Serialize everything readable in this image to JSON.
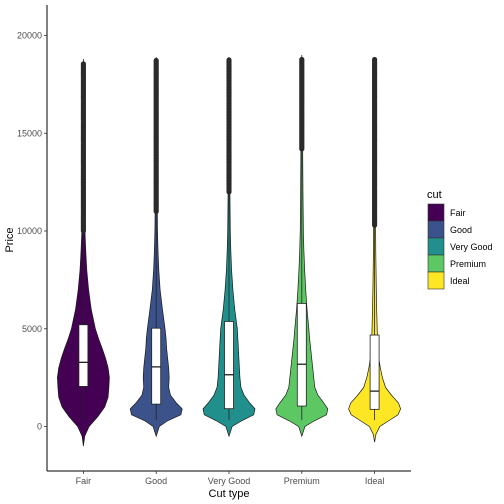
{
  "chart_data": {
    "type": "violin",
    "title": "",
    "xlabel": "Cut type",
    "ylabel": "Price",
    "ylim": [
      -2300,
      20800
    ],
    "yticks": [
      0,
      5000,
      10000,
      15000,
      20000
    ],
    "yticklabels": [
      "0",
      "5000",
      "10000",
      "15000",
      "20000"
    ],
    "categories": [
      "Fair",
      "Good",
      "Very Good",
      "Premium",
      "Ideal"
    ],
    "grid": false,
    "legend": {
      "title": "cut",
      "position": "right",
      "entries": [
        "Fair",
        "Good",
        "Very Good",
        "Premium",
        "Ideal"
      ]
    },
    "colors": [
      "#440154",
      "#3B528B",
      "#21908C",
      "#5DC863",
      "#FDE725"
    ],
    "series": [
      {
        "name": "Fair",
        "color": "#440154",
        "violin_range": [
          -1000,
          18800
        ],
        "whisker": [
          337,
          10000
        ],
        "q1": 2050,
        "median": 3282,
        "q3": 5206,
        "outlier_range": [
          10000,
          18574
        ],
        "density": [
          [
            -1000,
            0
          ],
          [
            -500,
            0.05
          ],
          [
            0,
            0.22
          ],
          [
            500,
            0.55
          ],
          [
            1000,
            0.82
          ],
          [
            1500,
            0.95
          ],
          [
            2000,
            0.98
          ],
          [
            2500,
            1.0
          ],
          [
            3000,
            0.95
          ],
          [
            3500,
            0.85
          ],
          [
            4000,
            0.72
          ],
          [
            4500,
            0.58
          ],
          [
            5000,
            0.46
          ],
          [
            6000,
            0.3
          ],
          [
            7000,
            0.2
          ],
          [
            8000,
            0.13
          ],
          [
            9000,
            0.09
          ],
          [
            10000,
            0.06
          ],
          [
            12000,
            0.04
          ],
          [
            14000,
            0.03
          ],
          [
            16000,
            0.025
          ],
          [
            17500,
            0.02
          ],
          [
            18800,
            0
          ]
        ]
      },
      {
        "name": "Good",
        "color": "#3B528B",
        "violin_range": [
          -500,
          18900
        ],
        "whisker": [
          327,
          11000
        ],
        "q1": 1145,
        "median": 3050,
        "q3": 5028,
        "outlier_range": [
          11000,
          18788
        ],
        "density": [
          [
            -500,
            0
          ],
          [
            0,
            0.12
          ],
          [
            300,
            0.45
          ],
          [
            600,
            0.95
          ],
          [
            900,
            1.0
          ],
          [
            1200,
            0.78
          ],
          [
            1600,
            0.55
          ],
          [
            2000,
            0.48
          ],
          [
            2500,
            0.5
          ],
          [
            3000,
            0.48
          ],
          [
            3500,
            0.44
          ],
          [
            4000,
            0.4
          ],
          [
            4500,
            0.38
          ],
          [
            5000,
            0.34
          ],
          [
            6000,
            0.24
          ],
          [
            7000,
            0.15
          ],
          [
            8000,
            0.1
          ],
          [
            9000,
            0.07
          ],
          [
            10000,
            0.05
          ],
          [
            12000,
            0.035
          ],
          [
            14000,
            0.028
          ],
          [
            16000,
            0.025
          ],
          [
            18000,
            0.02
          ],
          [
            18900,
            0
          ]
        ]
      },
      {
        "name": "Very Good",
        "color": "#21908C",
        "violin_range": [
          -500,
          18900
        ],
        "whisker": [
          336,
          12000
        ],
        "q1": 912,
        "median": 2648,
        "q3": 5373,
        "outlier_range": [
          12000,
          18818
        ],
        "density": [
          [
            -500,
            0
          ],
          [
            0,
            0.12
          ],
          [
            300,
            0.5
          ],
          [
            600,
            0.95
          ],
          [
            900,
            1.0
          ],
          [
            1200,
            0.8
          ],
          [
            1600,
            0.58
          ],
          [
            2000,
            0.46
          ],
          [
            2500,
            0.42
          ],
          [
            3000,
            0.4
          ],
          [
            3500,
            0.38
          ],
          [
            4000,
            0.36
          ],
          [
            4500,
            0.34
          ],
          [
            5000,
            0.32
          ],
          [
            6000,
            0.22
          ],
          [
            7000,
            0.15
          ],
          [
            8000,
            0.1
          ],
          [
            9000,
            0.07
          ],
          [
            10000,
            0.05
          ],
          [
            12000,
            0.035
          ],
          [
            14000,
            0.028
          ],
          [
            16000,
            0.025
          ],
          [
            18000,
            0.02
          ],
          [
            18900,
            0
          ]
        ]
      },
      {
        "name": "Premium",
        "color": "#5DC863",
        "violin_range": [
          -500,
          19000
        ],
        "whisker": [
          326,
          14200
        ],
        "q1": 1046,
        "median": 3185,
        "q3": 6296,
        "outlier_range": [
          14200,
          18823
        ],
        "density": [
          [
            -500,
            0
          ],
          [
            0,
            0.12
          ],
          [
            300,
            0.5
          ],
          [
            600,
            0.95
          ],
          [
            900,
            1.0
          ],
          [
            1200,
            0.85
          ],
          [
            1600,
            0.62
          ],
          [
            2000,
            0.5
          ],
          [
            2500,
            0.46
          ],
          [
            3000,
            0.42
          ],
          [
            3500,
            0.38
          ],
          [
            4000,
            0.34
          ],
          [
            4500,
            0.3
          ],
          [
            5000,
            0.27
          ],
          [
            6000,
            0.2
          ],
          [
            7000,
            0.15
          ],
          [
            8000,
            0.11
          ],
          [
            9000,
            0.08
          ],
          [
            10000,
            0.06
          ],
          [
            12000,
            0.045
          ],
          [
            14000,
            0.035
          ],
          [
            16000,
            0.03
          ],
          [
            18000,
            0.025
          ],
          [
            19000,
            0
          ]
        ]
      },
      {
        "name": "Ideal",
        "color": "#FDE725",
        "violin_range": [
          -800,
          18900
        ],
        "whisker": [
          326,
          10300
        ],
        "q1": 878,
        "median": 1810,
        "q3": 4678,
        "outlier_range": [
          10300,
          18806
        ],
        "density": [
          [
            -800,
            0
          ],
          [
            -400,
            0.05
          ],
          [
            0,
            0.2
          ],
          [
            300,
            0.55
          ],
          [
            600,
            0.9
          ],
          [
            900,
            1.0
          ],
          [
            1200,
            0.92
          ],
          [
            1600,
            0.65
          ],
          [
            2000,
            0.42
          ],
          [
            2500,
            0.3
          ],
          [
            3000,
            0.22
          ],
          [
            3500,
            0.16
          ],
          [
            4000,
            0.13
          ],
          [
            4500,
            0.11
          ],
          [
            5000,
            0.1
          ],
          [
            6000,
            0.08
          ],
          [
            7000,
            0.065
          ],
          [
            8000,
            0.055
          ],
          [
            9000,
            0.045
          ],
          [
            10000,
            0.04
          ],
          [
            12000,
            0.03
          ],
          [
            14000,
            0.025
          ],
          [
            16000,
            0.022
          ],
          [
            18000,
            0.02
          ],
          [
            18900,
            0
          ]
        ]
      }
    ]
  }
}
